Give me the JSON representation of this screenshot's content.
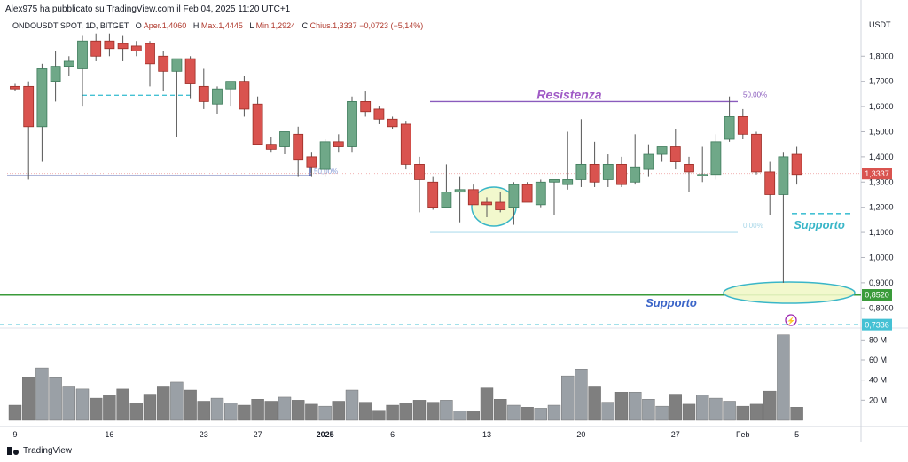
{
  "header": {
    "published_by": "Alex975 ha pubblicato su TradingView.com il Feb 04, 2025 11:20 UTC+1"
  },
  "legend": {
    "symbol": "ONDOUSDT SPOT, 1D, BITGET",
    "open_label": "O",
    "open_value": "Aper.1,4060",
    "high_label": "H",
    "high_value": "Max.1,4445",
    "low_label": "L",
    "low_value": "Min.1,2924",
    "close_label": "C",
    "close_value": "Chius.1,3337",
    "change_value": "−0,0723 (−5,14%)"
  },
  "footer": {
    "brand": "TradingView"
  },
  "colors": {
    "up": "#6fa888",
    "down": "#d9534f",
    "resistance": "#8a5bbd",
    "support_green": "#3a9b3a",
    "support_dash": "#45c1d4",
    "fib_line": "#bfe3f0",
    "blue_line": "#2a3f9d",
    "highlight": "#f1f7c8",
    "volume": "#8c8c8c"
  },
  "chart_data": {
    "type": "candlestick",
    "currency": "USDT",
    "ylim": [
      0.72,
      1.86
    ],
    "y_ticks": [
      "1,8000",
      "1,7000",
      "1,6000",
      "1,5000",
      "1,4000",
      "1,3000",
      "1,2000",
      "1,1000",
      "1,0000",
      "0,9000",
      "0,8000"
    ],
    "y_tick_values": [
      1.8,
      1.7,
      1.6,
      1.5,
      1.4,
      1.3,
      1.2,
      1.1,
      1.0,
      0.9,
      0.8
    ],
    "x_ticks": [
      "9",
      "16",
      "23",
      "27",
      "2025",
      "6",
      "13",
      "20",
      "27",
      "Feb",
      "5"
    ],
    "x_tick_index": [
      0,
      7,
      14,
      18,
      23,
      28,
      35,
      42,
      49,
      54,
      58
    ],
    "candles": [
      {
        "o": 1.68,
        "h": 1.69,
        "l": 1.66,
        "c": 1.67
      },
      {
        "o": 1.68,
        "h": 1.7,
        "l": 1.31,
        "c": 1.52
      },
      {
        "o": 1.52,
        "h": 1.77,
        "l": 1.38,
        "c": 1.75
      },
      {
        "o": 1.7,
        "h": 1.82,
        "l": 1.62,
        "c": 1.76
      },
      {
        "o": 1.76,
        "h": 1.8,
        "l": 1.72,
        "c": 1.78
      },
      {
        "o": 1.75,
        "h": 1.88,
        "l": 1.6,
        "c": 1.86
      },
      {
        "o": 1.86,
        "h": 1.89,
        "l": 1.78,
        "c": 1.8
      },
      {
        "o": 1.86,
        "h": 1.89,
        "l": 1.8,
        "c": 1.83
      },
      {
        "o": 1.85,
        "h": 1.88,
        "l": 1.78,
        "c": 1.83
      },
      {
        "o": 1.84,
        "h": 1.86,
        "l": 1.8,
        "c": 1.82
      },
      {
        "o": 1.85,
        "h": 1.86,
        "l": 1.68,
        "c": 1.77
      },
      {
        "o": 1.8,
        "h": 1.82,
        "l": 1.66,
        "c": 1.74
      },
      {
        "o": 1.74,
        "h": 1.79,
        "l": 1.48,
        "c": 1.79
      },
      {
        "o": 1.79,
        "h": 1.8,
        "l": 1.63,
        "c": 1.69
      },
      {
        "o": 1.68,
        "h": 1.75,
        "l": 1.59,
        "c": 1.62
      },
      {
        "o": 1.61,
        "h": 1.68,
        "l": 1.57,
        "c": 1.67
      },
      {
        "o": 1.67,
        "h": 1.7,
        "l": 1.6,
        "c": 1.7
      },
      {
        "o": 1.7,
        "h": 1.72,
        "l": 1.56,
        "c": 1.59
      },
      {
        "o": 1.61,
        "h": 1.64,
        "l": 1.45,
        "c": 1.45
      },
      {
        "o": 1.45,
        "h": 1.48,
        "l": 1.42,
        "c": 1.43
      },
      {
        "o": 1.44,
        "h": 1.5,
        "l": 1.41,
        "c": 1.5
      },
      {
        "o": 1.49,
        "h": 1.52,
        "l": 1.32,
        "c": 1.39
      },
      {
        "o": 1.4,
        "h": 1.42,
        "l": 1.32,
        "c": 1.36
      },
      {
        "o": 1.35,
        "h": 1.47,
        "l": 1.32,
        "c": 1.46
      },
      {
        "o": 1.46,
        "h": 1.49,
        "l": 1.42,
        "c": 1.44
      },
      {
        "o": 1.44,
        "h": 1.64,
        "l": 1.42,
        "c": 1.62
      },
      {
        "o": 1.62,
        "h": 1.66,
        "l": 1.56,
        "c": 1.58
      },
      {
        "o": 1.59,
        "h": 1.6,
        "l": 1.53,
        "c": 1.55
      },
      {
        "o": 1.55,
        "h": 1.56,
        "l": 1.51,
        "c": 1.52
      },
      {
        "o": 1.53,
        "h": 1.54,
        "l": 1.35,
        "c": 1.37
      },
      {
        "o": 1.37,
        "h": 1.4,
        "l": 1.18,
        "c": 1.31
      },
      {
        "o": 1.3,
        "h": 1.32,
        "l": 1.19,
        "c": 1.2
      },
      {
        "o": 1.2,
        "h": 1.37,
        "l": 1.2,
        "c": 1.26
      },
      {
        "o": 1.26,
        "h": 1.32,
        "l": 1.14,
        "c": 1.27
      },
      {
        "o": 1.27,
        "h": 1.29,
        "l": 1.21,
        "c": 1.21
      },
      {
        "o": 1.22,
        "h": 1.24,
        "l": 1.16,
        "c": 1.21
      },
      {
        "o": 1.22,
        "h": 1.26,
        "l": 1.18,
        "c": 1.19
      },
      {
        "o": 1.2,
        "h": 1.3,
        "l": 1.13,
        "c": 1.29
      },
      {
        "o": 1.29,
        "h": 1.3,
        "l": 1.22,
        "c": 1.22
      },
      {
        "o": 1.21,
        "h": 1.31,
        "l": 1.2,
        "c": 1.3
      },
      {
        "o": 1.3,
        "h": 1.31,
        "l": 1.17,
        "c": 1.31
      },
      {
        "o": 1.29,
        "h": 1.5,
        "l": 1.27,
        "c": 1.31
      },
      {
        "o": 1.31,
        "h": 1.55,
        "l": 1.28,
        "c": 1.37
      },
      {
        "o": 1.37,
        "h": 1.46,
        "l": 1.28,
        "c": 1.3
      },
      {
        "o": 1.31,
        "h": 1.41,
        "l": 1.28,
        "c": 1.37
      },
      {
        "o": 1.37,
        "h": 1.4,
        "l": 1.28,
        "c": 1.29
      },
      {
        "o": 1.3,
        "h": 1.49,
        "l": 1.29,
        "c": 1.36
      },
      {
        "o": 1.35,
        "h": 1.45,
        "l": 1.32,
        "c": 1.41
      },
      {
        "o": 1.41,
        "h": 1.44,
        "l": 1.38,
        "c": 1.44
      },
      {
        "o": 1.44,
        "h": 1.51,
        "l": 1.35,
        "c": 1.38
      },
      {
        "o": 1.37,
        "h": 1.4,
        "l": 1.26,
        "c": 1.34
      },
      {
        "o": 1.33,
        "h": 1.44,
        "l": 1.3,
        "c": 1.33
      },
      {
        "o": 1.33,
        "h": 1.49,
        "l": 1.31,
        "c": 1.46
      },
      {
        "o": 1.47,
        "h": 1.64,
        "l": 1.46,
        "c": 1.56
      },
      {
        "o": 1.56,
        "h": 1.59,
        "l": 1.47,
        "c": 1.49
      },
      {
        "o": 1.49,
        "h": 1.5,
        "l": 1.33,
        "c": 1.34
      },
      {
        "o": 1.34,
        "h": 1.38,
        "l": 1.17,
        "c": 1.25
      },
      {
        "o": 1.25,
        "h": 1.42,
        "l": 0.9,
        "c": 1.4
      },
      {
        "o": 1.41,
        "h": 1.44,
        "l": 1.29,
        "c": 1.33
      }
    ],
    "volume_axis": [
      "80 M",
      "60 M",
      "40 M",
      "20 M"
    ],
    "volume_axis_values": [
      80,
      60,
      40,
      20
    ],
    "volume": [
      15,
      43,
      52,
      43,
      34,
      31,
      22,
      25,
      31,
      17,
      26,
      34,
      38,
      30,
      19,
      22,
      17,
      15,
      21,
      19,
      23,
      20,
      16,
      14,
      19,
      30,
      18,
      10,
      15,
      17,
      20,
      18,
      20,
      9,
      9,
      33,
      21,
      15,
      13,
      12,
      15,
      44,
      51,
      34,
      18,
      28,
      28,
      21,
      14,
      26,
      16,
      25,
      22,
      19,
      14,
      16,
      29,
      85,
      13
    ],
    "price_labels": [
      {
        "text": "1,3337",
        "value": 1.3337,
        "color": "#d9534f"
      },
      {
        "text": "0,8520",
        "value": 0.852,
        "color": "#3a9b3a"
      },
      {
        "text": "0,7336",
        "value": 0.7336,
        "color": "#45c1d4"
      }
    ],
    "annotations": {
      "resistance_label": "Resistenza",
      "resistance_level": 1.62,
      "fib_top_label": "50,00%",
      "fib_bottom_label": "0,00%",
      "fib_bottom_level": 1.1,
      "support_label_upper": "Supporto",
      "support_label_lower": "Supporto",
      "support_upper_level": 1.175,
      "support_green_level": 0.852,
      "support_dash_level": 0.7336,
      "blue_line_level": 1.325,
      "blue_line_label": "50,00%",
      "cyan_dash_top_level": 1.645
    }
  }
}
